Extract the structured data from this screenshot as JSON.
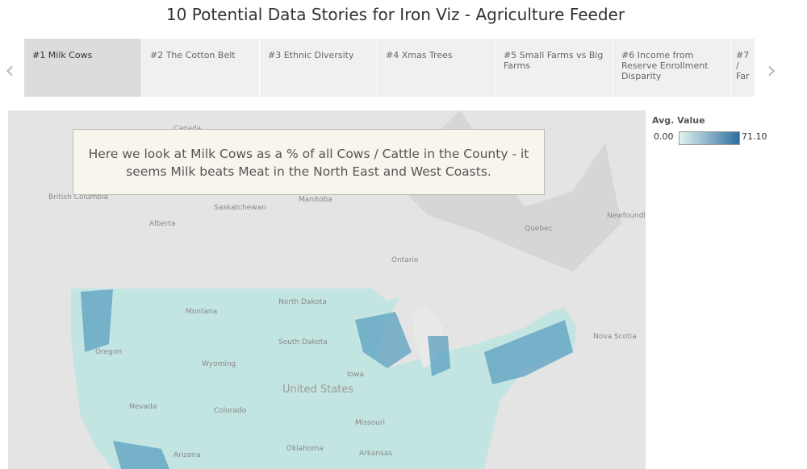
{
  "header": {
    "title": "10 Potential Data Stories for Iron Viz - Agriculture Feeder"
  },
  "story_points": [
    "#1 Milk Cows",
    "#2 The Cotton Belt",
    "#3 Ethnic Diversity",
    "#4 Xmas Trees",
    "#5 Small Farms vs Big Farms",
    "#6 Income from Reserve Enrollment Disparity",
    "#7 / Far"
  ],
  "annotation": "Here we look at Milk Cows as a % of all Cows / Cattle in the County - it seems Milk beats Meat in the North East and West Coasts.",
  "legend": {
    "title": "Avg. Value",
    "min": "0.00",
    "max": "71.10"
  },
  "map_labels": [
    "Canada",
    "British Columbia",
    "Alberta",
    "Saskatchewan",
    "Manitoba",
    "Ontario",
    "Quebec",
    "Newfoundland and Labrador",
    "Nova Scotia",
    "Montana",
    "North Dakota",
    "South Dakota",
    "Wyoming",
    "Oregon",
    "Nevada",
    "Colorado",
    "United States",
    "Iowa",
    "Missouri",
    "Oklahoma",
    "Arizona",
    "Arkansas"
  ]
}
